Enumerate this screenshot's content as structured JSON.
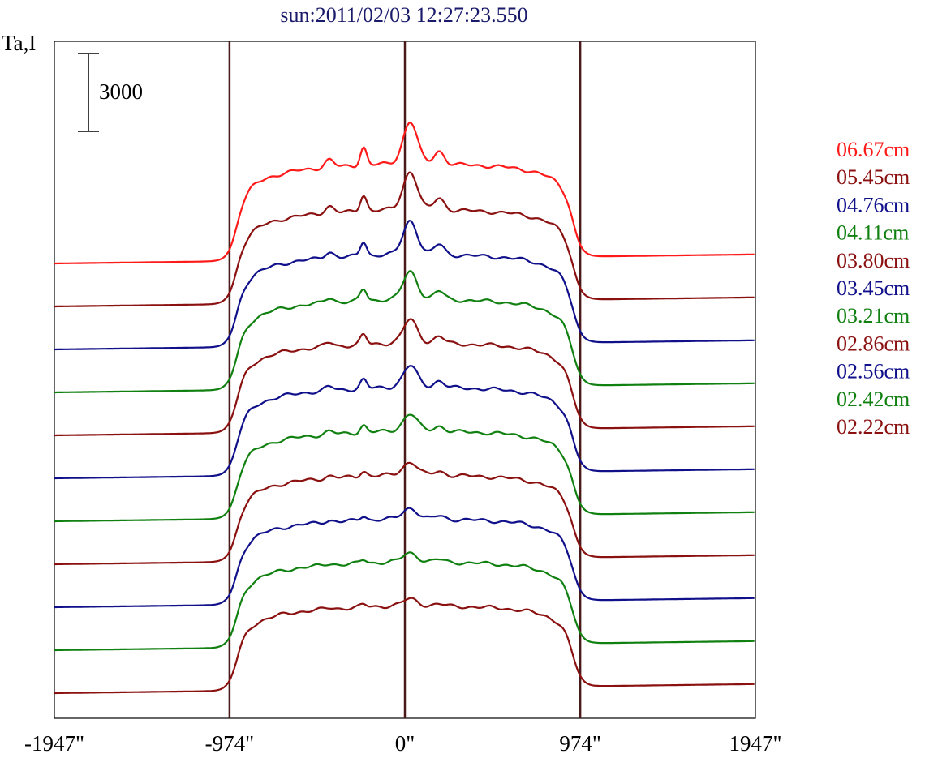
{
  "chart_data": {
    "type": "line",
    "title": "sun:2011/02/03 12:27:23.550",
    "ylabel": "Ta,I",
    "scale_bar_label": "3000",
    "scale_bar_value": 3000,
    "xlim": [
      -1947,
      1947
    ],
    "x_tick_values": [
      -1947,
      -974,
      0,
      974,
      1947
    ],
    "x_tick_labels": [
      "-1947\"",
      "-974\"",
      "0\"",
      "974\"",
      "1947\""
    ],
    "vertical_markers": [
      -974,
      0,
      974
    ],
    "colors": {
      "title": "#1a1a6b",
      "marker": "#4a1a1a",
      "frame": "#000000"
    },
    "series": [
      {
        "name": "06.67cm",
        "color": "#ff1a1a",
        "offset": 10,
        "amplitude": 1.0,
        "feature": 1.0
      },
      {
        "name": "05.45cm",
        "color": "#8b1010",
        "offset": 9,
        "amplitude": 0.97,
        "feature": 0.9
      },
      {
        "name": "04.76cm",
        "color": "#10108b",
        "offset": 8,
        "amplitude": 0.95,
        "feature": 0.8
      },
      {
        "name": "04.11cm",
        "color": "#108010",
        "offset": 7,
        "amplitude": 0.93,
        "feature": 0.65
      },
      {
        "name": "03.80cm",
        "color": "#8b1010",
        "offset": 6,
        "amplitude": 0.92,
        "feature": 0.55
      },
      {
        "name": "03.45cm",
        "color": "#10108b",
        "offset": 5,
        "amplitude": 0.91,
        "feature": 0.5
      },
      {
        "name": "03.21cm",
        "color": "#108010",
        "offset": 4,
        "amplitude": 0.9,
        "feature": 0.4
      },
      {
        "name": "02.86cm",
        "color": "#8b1010",
        "offset": 3,
        "amplitude": 0.89,
        "feature": 0.3
      },
      {
        "name": "02.56cm",
        "color": "#10108b",
        "offset": 2,
        "amplitude": 0.88,
        "feature": 0.25
      },
      {
        "name": "02.42cm",
        "color": "#108010",
        "offset": 1,
        "amplitude": 0.88,
        "feature": 0.2
      },
      {
        "name": "02.22cm",
        "color": "#8b1010",
        "offset": 0,
        "amplitude": 0.87,
        "feature": 0.15
      }
    ]
  }
}
